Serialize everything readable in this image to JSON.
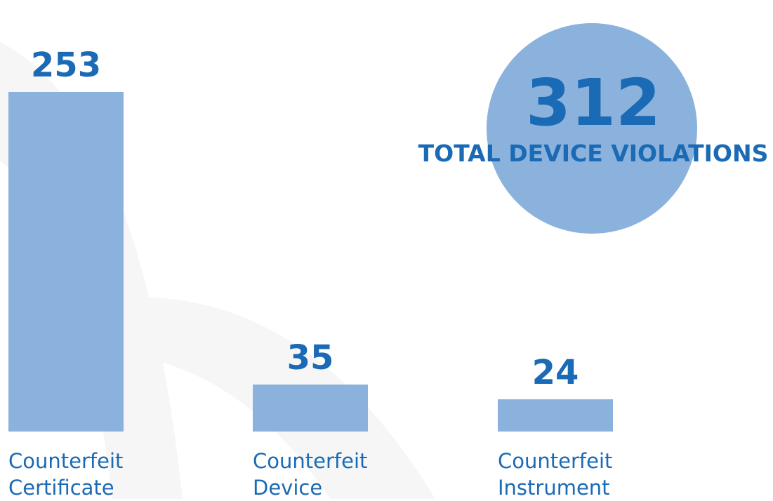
{
  "chart_data": {
    "type": "bar",
    "categories": [
      "Counterfeit Certificate",
      "Counterfeit Device",
      "Counterfeit Instrument"
    ],
    "values": [
      253,
      35,
      24
    ],
    "color": "#8ab2dc",
    "label_color": "#1a6ab5",
    "total": 312,
    "total_label": "TOTAL DEVICE VIOLATIONS"
  }
}
